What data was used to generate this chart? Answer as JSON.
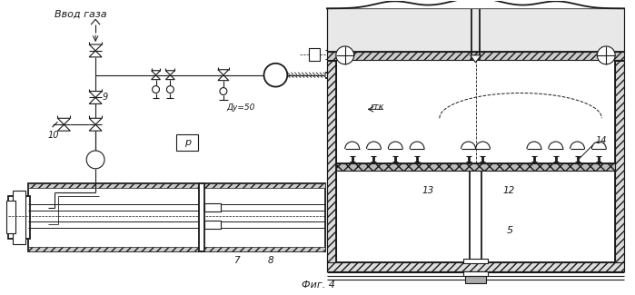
{
  "title": "Фиг. 4",
  "label_vvod": "Ввод газа",
  "label_9": "9",
  "label_10": "10",
  "label_7": "7",
  "label_8": "8",
  "label_du50": "Ду=50",
  "label_p": "р",
  "label_rtk": "rтк",
  "label_13": "13",
  "label_12": "12",
  "label_5": "5",
  "label_14": "14",
  "bg_color": "#ffffff",
  "line_color": "#1a1a1a"
}
